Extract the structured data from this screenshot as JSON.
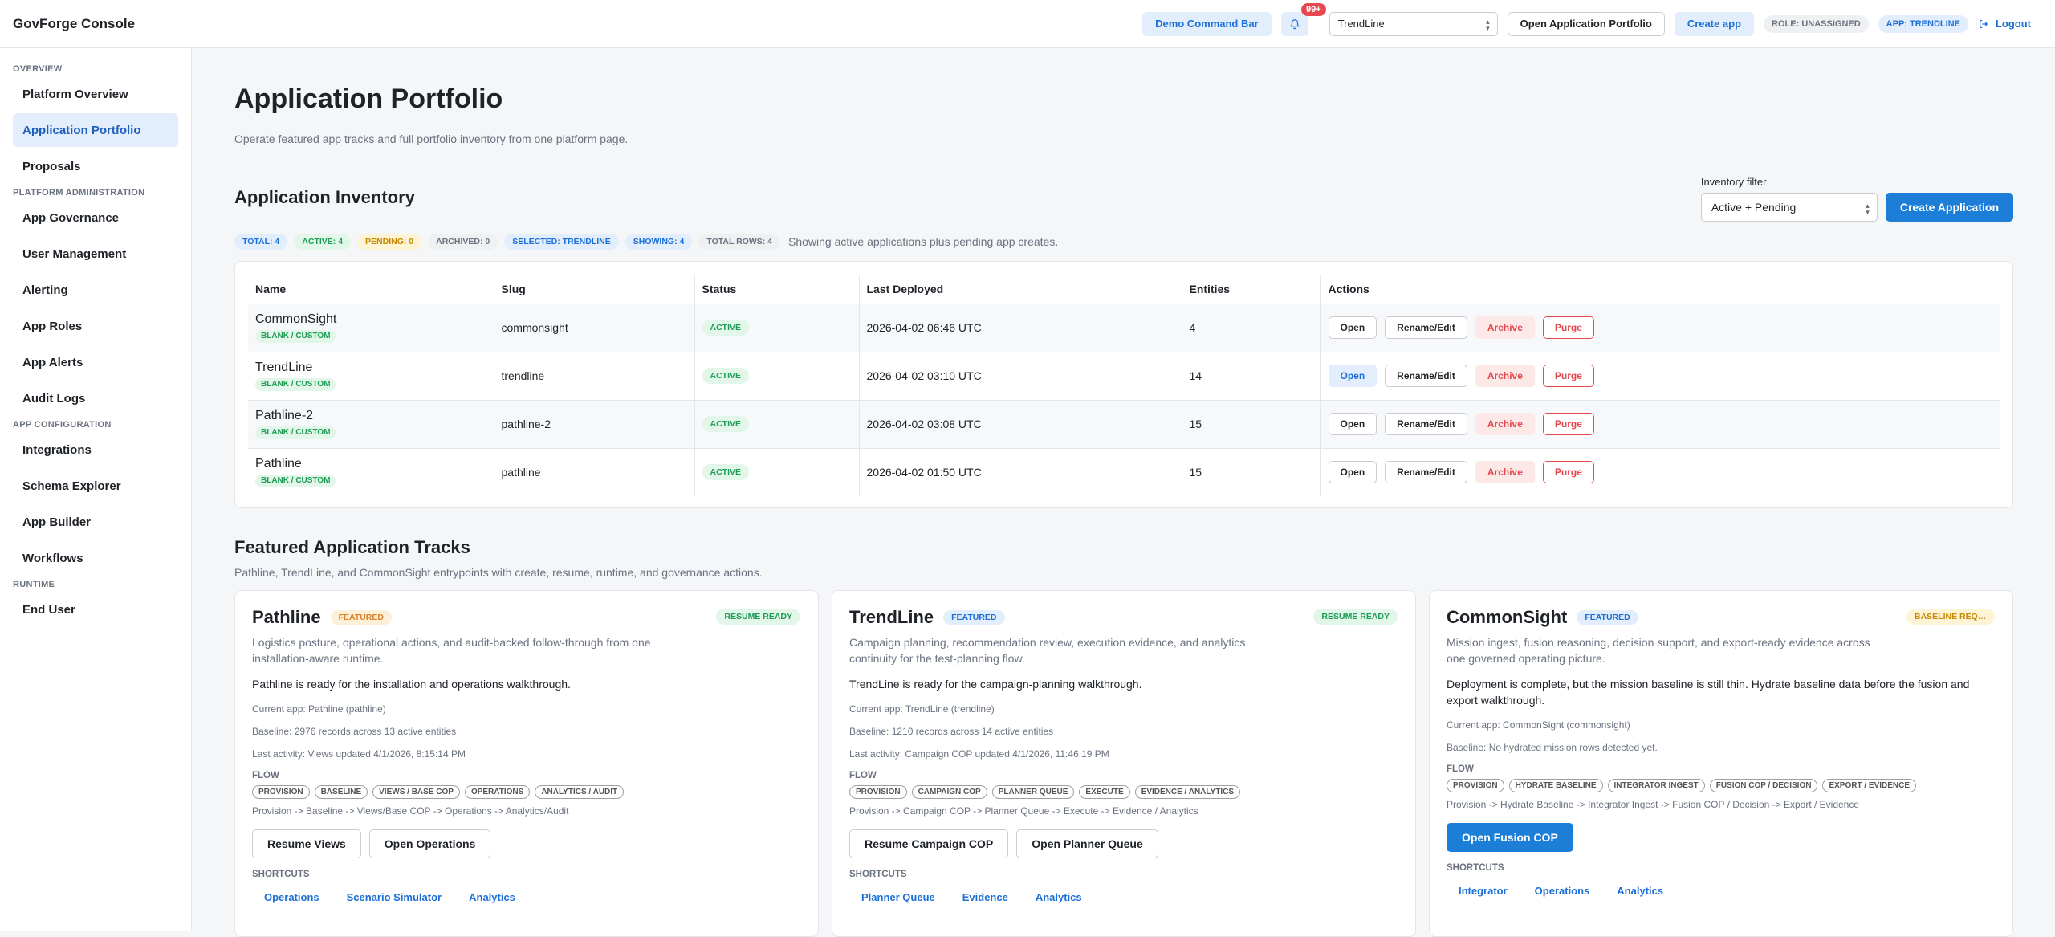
{
  "brand": "GovForge Console",
  "top": {
    "demo_command_bar": "Demo Command Bar",
    "notification_count": "99+",
    "app_select_value": "TrendLine",
    "open_portfolio": "Open Application Portfolio",
    "create_app": "Create app",
    "role_chip": "ROLE: UNASSIGNED",
    "app_chip": "APP: TRENDLINE",
    "logout": "Logout"
  },
  "sidebar": {
    "overview_title": "OVERVIEW",
    "overview": [
      "Platform Overview",
      "Application Portfolio",
      "Proposals"
    ],
    "admin_title": "PLATFORM ADMINISTRATION",
    "admin": [
      "App Governance",
      "User Management",
      "Alerting",
      "App Roles",
      "App Alerts",
      "Audit Logs"
    ],
    "config_title": "APP CONFIGURATION",
    "config": [
      "Integrations",
      "Schema Explorer",
      "App Builder",
      "Workflows"
    ],
    "runtime_title": "RUNTIME",
    "runtime": [
      "End User"
    ]
  },
  "page": {
    "title": "Application Portfolio",
    "subtitle": "Operate featured app tracks and full portfolio inventory from one platform page."
  },
  "inventory": {
    "title": "Application Inventory",
    "filter_label": "Inventory filter",
    "filter_value": "Active + Pending",
    "create_button": "Create Application",
    "stats": {
      "total": "TOTAL: 4",
      "active": "ACTIVE: 4",
      "pending": "PENDING: 0",
      "archived": "ARCHIVED: 0",
      "selected": "SELECTED: TRENDLINE",
      "showing": "SHOWING: 4",
      "total_rows": "TOTAL ROWS: 4"
    },
    "note": "Showing active applications plus pending app creates.",
    "headers": [
      "Name",
      "Slug",
      "Status",
      "Last Deployed",
      "Entities",
      "Actions"
    ],
    "actions": {
      "open": "Open",
      "rename": "Rename/Edit",
      "archive": "Archive",
      "purge": "Purge"
    },
    "rows": [
      {
        "name": "CommonSight",
        "tag": "BLANK / CUSTOM",
        "slug": "commonsight",
        "status": "ACTIVE",
        "deployed": "2026-04-02 06:46 UTC",
        "entities": "4"
      },
      {
        "name": "TrendLine",
        "tag": "BLANK / CUSTOM",
        "slug": "trendline",
        "status": "ACTIVE",
        "deployed": "2026-04-02 03:10 UTC",
        "entities": "14"
      },
      {
        "name": "Pathline-2",
        "tag": "BLANK / CUSTOM",
        "slug": "pathline-2",
        "status": "ACTIVE",
        "deployed": "2026-04-02 03:08 UTC",
        "entities": "15"
      },
      {
        "name": "Pathline",
        "tag": "BLANK / CUSTOM",
        "slug": "pathline",
        "status": "ACTIVE",
        "deployed": "2026-04-02 01:50 UTC",
        "entities": "15"
      }
    ]
  },
  "tracks": {
    "title": "Featured Application Tracks",
    "subtitle": "Pathline, TrendLine, and CommonSight entrypoints with create, resume, runtime, and governance actions.",
    "flow_label": "FLOW",
    "shortcuts_label": "SHORTCUTS",
    "cards": [
      {
        "title": "Pathline",
        "featured": "FEATURED",
        "resume": "RESUME READY",
        "desc": "Logistics posture, operational actions, and audit-backed follow-through from one installation-aware runtime.",
        "ready": "Pathline is ready for the installation and operations walkthrough.",
        "current": "Current app: Pathline (pathline)",
        "baseline": "Baseline: 2976 records across 13 active entities",
        "activity": "Last activity: Views updated 4/1/2026, 8:15:14 PM",
        "flow": [
          "PROVISION",
          "BASELINE",
          "VIEWS / BASE COP",
          "OPERATIONS",
          "ANALYTICS / AUDIT"
        ],
        "flow_text": "Provision -> Baseline -> Views/Base COP -> Operations -> Analytics/Audit",
        "buttons": [
          "Resume Views",
          "Open Operations"
        ],
        "shortcuts": [
          "Operations",
          "Scenario Simulator",
          "Analytics"
        ]
      },
      {
        "title": "TrendLine",
        "featured": "FEATURED",
        "resume": "RESUME READY",
        "desc": "Campaign planning, recommendation review, execution evidence, and analytics continuity for the test-planning flow.",
        "ready": "TrendLine is ready for the campaign-planning walkthrough.",
        "current": "Current app: TrendLine (trendline)",
        "baseline": "Baseline: 1210 records across 14 active entities",
        "activity": "Last activity: Campaign COP updated 4/1/2026, 11:46:19 PM",
        "flow": [
          "PROVISION",
          "CAMPAIGN COP",
          "PLANNER QUEUE",
          "EXECUTE",
          "EVIDENCE / ANALYTICS"
        ],
        "flow_text": "Provision -> Campaign COP -> Planner Queue -> Execute -> Evidence / Analytics",
        "buttons": [
          "Resume Campaign COP",
          "Open Planner Queue"
        ],
        "shortcuts": [
          "Planner Queue",
          "Evidence",
          "Analytics"
        ]
      },
      {
        "title": "CommonSight",
        "featured": "FEATURED",
        "resume": "BASELINE REQUIRED",
        "desc": "Mission ingest, fusion reasoning, decision support, and export-ready evidence across one governed operating picture.",
        "ready": "Deployment is complete, but the mission baseline is still thin. Hydrate baseline data before the fusion and export walkthrough.",
        "current": "Current app: CommonSight (commonsight)",
        "baseline": "Baseline: No hydrated mission rows detected yet.",
        "flow": [
          "PROVISION",
          "HYDRATE BASELINE",
          "INTEGRATOR INGEST",
          "FUSION COP / DECISION",
          "EXPORT / EVIDENCE"
        ],
        "flow_text": "Provision -> Hydrate Baseline -> Integrator Ingest -> Fusion COP / Decision -> Export / Evidence",
        "buttons": [
          "Open Fusion COP"
        ],
        "shortcuts": [
          "Integrator",
          "Operations",
          "Analytics"
        ]
      }
    ]
  }
}
